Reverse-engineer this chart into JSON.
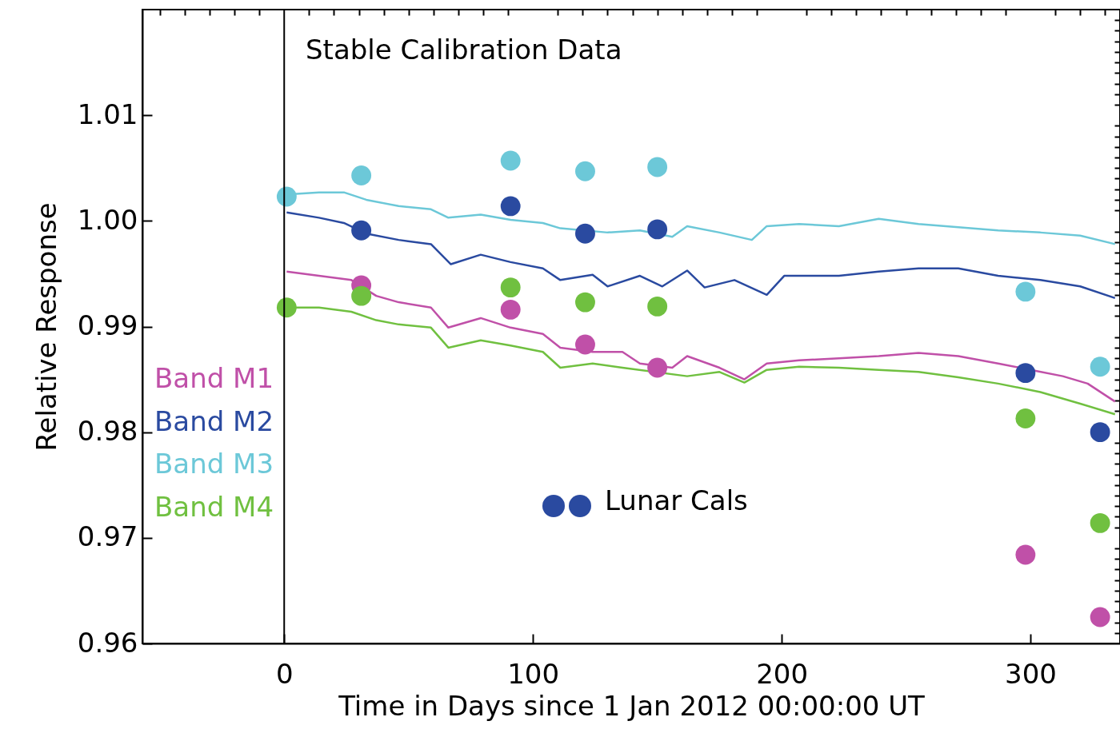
{
  "chart_data": {
    "type": "line",
    "title": "Stable Calibration Data",
    "xlabel": "Time in Days since 1 Jan 2012 00:00:00 UT",
    "ylabel": "Relative Response",
    "xlim": [
      -57,
      336
    ],
    "ylim": [
      0.96,
      1.02
    ],
    "xticks": [
      {
        "value": -50,
        "label": null
      },
      {
        "value": -40,
        "label": null
      },
      {
        "value": -30,
        "label": null
      },
      {
        "value": -20,
        "label": null
      },
      {
        "value": -10,
        "label": null
      },
      0,
      {
        "value": 10,
        "label": null
      },
      {
        "value": 20,
        "label": null
      },
      {
        "value": 30,
        "label": null
      },
      {
        "value": 40,
        "label": null
      },
      {
        "value": 50,
        "label": null
      },
      {
        "value": 60,
        "label": null
      },
      {
        "value": 70,
        "label": null
      },
      {
        "value": 80,
        "label": null
      },
      {
        "value": 90,
        "label": null
      },
      100,
      {
        "value": 110,
        "label": null
      },
      {
        "value": 120,
        "label": null
      },
      {
        "value": 130,
        "label": null
      },
      {
        "value": 140,
        "label": null
      },
      {
        "value": 150,
        "label": null
      },
      {
        "value": 160,
        "label": null
      },
      {
        "value": 170,
        "label": null
      },
      {
        "value": 180,
        "label": null
      },
      {
        "value": 190,
        "label": null
      },
      200,
      {
        "value": 210,
        "label": null
      },
      {
        "value": 220,
        "label": null
      },
      {
        "value": 230,
        "label": null
      },
      {
        "value": 240,
        "label": null
      },
      {
        "value": 250,
        "label": null
      },
      {
        "value": 260,
        "label": null
      },
      {
        "value": 270,
        "label": null
      },
      {
        "value": 280,
        "label": null
      },
      {
        "value": 290,
        "label": null
      },
      300,
      {
        "value": 310,
        "label": null
      },
      {
        "value": 320,
        "label": null
      },
      {
        "value": 330,
        "label": null
      }
    ],
    "yticks": [
      0.96,
      {
        "value": 0.961,
        "label": null
      },
      {
        "value": 0.962,
        "label": null
      },
      {
        "value": 0.963,
        "label": null
      },
      {
        "value": 0.964,
        "label": null
      },
      {
        "value": 0.965,
        "label": null
      },
      {
        "value": 0.966,
        "label": null
      },
      {
        "value": 0.967,
        "label": null
      },
      {
        "value": 0.968,
        "label": null
      },
      {
        "value": 0.969,
        "label": null
      },
      0.97,
      {
        "value": 0.971,
        "label": null
      },
      {
        "value": 0.972,
        "label": null
      },
      {
        "value": 0.973,
        "label": null
      },
      {
        "value": 0.974,
        "label": null
      },
      {
        "value": 0.975,
        "label": null
      },
      {
        "value": 0.976,
        "label": null
      },
      {
        "value": 0.977,
        "label": null
      },
      {
        "value": 0.978,
        "label": null
      },
      {
        "value": 0.979,
        "label": null
      },
      0.98,
      {
        "value": 0.981,
        "label": null
      },
      {
        "value": 0.982,
        "label": null
      },
      {
        "value": 0.983,
        "label": null
      },
      {
        "value": 0.984,
        "label": null
      },
      {
        "value": 0.985,
        "label": null
      },
      {
        "value": 0.986,
        "label": null
      },
      {
        "value": 0.987,
        "label": null
      },
      {
        "value": 0.988,
        "label": null
      },
      {
        "value": 0.989,
        "label": null
      },
      0.99,
      {
        "value": 0.991,
        "label": null
      },
      {
        "value": 0.992,
        "label": null
      },
      {
        "value": 0.993,
        "label": null
      },
      {
        "value": 0.994,
        "label": null
      },
      {
        "value": 0.995,
        "label": null
      },
      {
        "value": 0.996,
        "label": null
      },
      {
        "value": 0.997,
        "label": null
      },
      {
        "value": 0.998,
        "label": null
      },
      {
        "value": 0.999,
        "label": null
      },
      {
        "value": 1,
        "label": "1.00"
      },
      {
        "value": 1.001,
        "label": null
      },
      {
        "value": 1.002,
        "label": null
      },
      {
        "value": 1.003,
        "label": null
      },
      {
        "value": 1.004,
        "label": null
      },
      {
        "value": 1.005,
        "label": null
      },
      {
        "value": 1.006,
        "label": null
      },
      {
        "value": 1.007,
        "label": null
      },
      {
        "value": 1.008,
        "label": null
      },
      {
        "value": 1.009,
        "label": null
      },
      1.01,
      {
        "value": 1.011,
        "label": null
      },
      {
        "value": 1.012,
        "label": null
      },
      {
        "value": 1.013,
        "label": null
      },
      {
        "value": 1.014,
        "label": null
      },
      {
        "value": 1.015,
        "label": null
      },
      {
        "value": 1.016,
        "label": null
      },
      {
        "value": 1.017,
        "label": null
      },
      {
        "value": 1.018,
        "label": null
      },
      {
        "value": 1.019,
        "label": null
      }
    ],
    "grid": false,
    "legend": "left",
    "ref_lines": [
      {
        "axis": "x",
        "value": 0,
        "color": "#000000"
      }
    ],
    "annotations": [
      "Lunar Cals"
    ],
    "series": [
      {
        "name": "Band M1",
        "type": "line",
        "color": "#c050a8",
        "x": [
          1,
          14,
          27,
          37,
          46,
          59,
          66,
          79,
          91,
          104,
          111,
          124,
          136,
          143,
          156,
          162,
          175,
          185,
          194,
          207,
          223,
          239,
          255,
          271,
          287,
          297,
          313,
          323,
          334
        ],
        "values": [
          0.9952,
          0.9948,
          0.9944,
          0.9929,
          0.9923,
          0.9918,
          0.9899,
          0.9908,
          0.9899,
          0.9893,
          0.988,
          0.9876,
          0.9876,
          0.9865,
          0.9861,
          0.9872,
          0.9861,
          0.985,
          0.9865,
          0.9868,
          0.987,
          0.9872,
          0.9875,
          0.9872,
          0.9865,
          null,
          0.9853,
          0.9846,
          0.9829
        ]
      },
      {
        "name": "Band M2",
        "type": "line",
        "color": "#2a4aa0",
        "x": [
          1,
          14,
          24,
          33,
          46,
          59,
          67,
          79,
          91,
          104,
          111,
          124,
          130,
          143,
          152,
          162,
          169,
          181,
          194,
          201,
          223,
          239,
          255,
          271,
          287,
          304,
          320,
          334
        ],
        "values": [
          1.0008,
          1.0003,
          0.9998,
          0.9988,
          0.9982,
          0.9978,
          0.9959,
          0.9968,
          0.9961,
          0.9955,
          0.9944,
          0.9949,
          0.9938,
          0.9948,
          0.9938,
          0.9953,
          0.9937,
          0.9944,
          0.993,
          0.9948,
          0.9948,
          0.9952,
          0.9955,
          0.9955,
          0.9948,
          0.9944,
          0.9938,
          0.9927
        ]
      },
      {
        "name": "Band M3",
        "type": "line",
        "color": "#6cc8d8",
        "x": [
          1,
          14,
          24,
          33,
          46,
          59,
          66,
          79,
          91,
          104,
          111,
          120,
          130,
          143,
          156,
          162,
          175,
          188,
          194,
          207,
          223,
          239,
          255,
          271,
          287,
          304,
          320,
          334
        ],
        "values": [
          1.0025,
          1.0027,
          1.0027,
          1.002,
          1.0014,
          1.0011,
          1.0003,
          1.0006,
          1.0001,
          0.9998,
          0.9993,
          null,
          0.9989,
          0.9991,
          0.9985,
          0.9995,
          0.9989,
          0.9982,
          0.9995,
          0.9997,
          0.9995,
          1.0002,
          0.9997,
          0.9994,
          0.9991,
          0.9989,
          0.9986,
          0.9978
        ]
      },
      {
        "name": "Band M4",
        "type": "line",
        "color": "#70c040",
        "x": [
          1,
          14,
          27,
          37,
          46,
          59,
          66,
          79,
          91,
          104,
          111,
          124,
          136,
          149,
          162,
          175,
          185,
          194,
          207,
          223,
          239,
          255,
          271,
          287,
          304,
          320,
          334
        ],
        "values": [
          0.9918,
          0.9918,
          0.9914,
          0.9906,
          0.9902,
          0.9899,
          0.988,
          0.9887,
          0.9882,
          0.9876,
          0.9861,
          0.9865,
          0.9861,
          null,
          0.9853,
          0.9857,
          0.9847,
          0.9859,
          0.9862,
          0.9861,
          0.9859,
          0.9857,
          0.9852,
          0.9846,
          0.9838,
          0.9827,
          0.9817
        ]
      },
      {
        "type": "scatter",
        "marker": "circle",
        "color": "#c050a8",
        "x": [
          31,
          91,
          121,
          150,
          298,
          328
        ],
        "values": [
          0.9939,
          0.9916,
          0.9883,
          0.9861,
          0.9684,
          0.9625
        ]
      },
      {
        "type": "scatter",
        "marker": "circle",
        "color": "#2a4aa0",
        "x": [
          31,
          91,
          121,
          150,
          298,
          328
        ],
        "values": [
          0.9991,
          1.0014,
          0.9988,
          0.9992,
          0.9856,
          0.98
        ]
      },
      {
        "type": "scatter",
        "marker": "circle",
        "color": "#6cc8d8",
        "x": [
          1,
          31,
          91,
          121,
          150,
          298,
          328
        ],
        "values": [
          1.0023,
          1.0043,
          1.0057,
          1.0047,
          1.0051,
          0.9933,
          0.9862
        ]
      },
      {
        "type": "scatter",
        "marker": "circle",
        "color": "#70c040",
        "x": [
          1,
          31,
          91,
          121,
          150,
          298,
          328
        ],
        "values": [
          0.9918,
          0.9929,
          0.9937,
          0.9923,
          0.9919,
          0.9813,
          0.9714
        ]
      }
    ]
  }
}
